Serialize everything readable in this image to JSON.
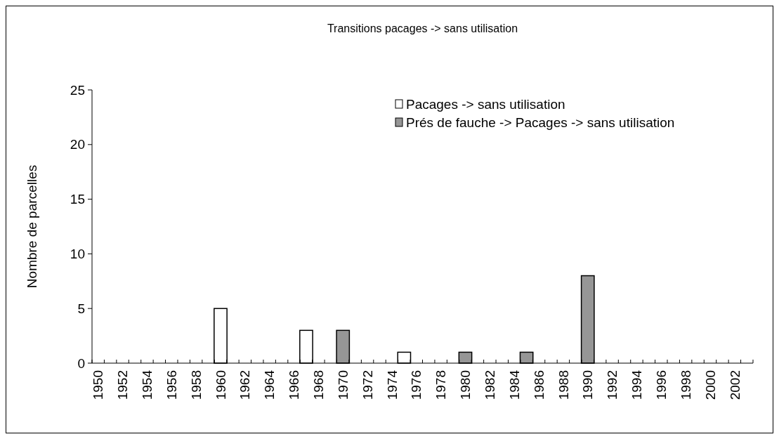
{
  "chart_data": {
    "type": "bar",
    "title": "Transitions pacages -> sans utilisation",
    "ylabel": "Nombre de parcelles",
    "categories": [
      "1950",
      null,
      "1952",
      null,
      "1954",
      null,
      "1956",
      null,
      "1958",
      null,
      "1960",
      null,
      "1962",
      null,
      "1964",
      null,
      "1966",
      null,
      "1968",
      null,
      "1970",
      null,
      "1972",
      null,
      "1974",
      null,
      "1976",
      null,
      "1978",
      null,
      "1980",
      null,
      "1982",
      null,
      "1984",
      null,
      "1986",
      null,
      "1988",
      null,
      "1990",
      null,
      "1992",
      null,
      "1994",
      null,
      "1996",
      null,
      "1998",
      null,
      "2000",
      null,
      "2002",
      null
    ],
    "series": [
      {
        "name": "Pacages -> sans utilisation",
        "color": "#ffffff",
        "values": [
          0,
          0,
          0,
          0,
          0,
          0,
          0,
          0,
          0,
          0,
          5,
          0,
          0,
          0,
          0,
          0,
          0,
          3,
          0,
          0,
          0,
          0,
          0,
          0,
          0,
          1,
          0,
          0,
          0,
          0,
          0,
          0,
          0,
          0,
          0,
          0,
          0,
          0,
          0,
          0,
          0,
          0,
          0,
          0,
          0,
          0,
          0,
          0,
          0,
          0,
          0,
          0,
          0,
          0
        ]
      },
      {
        "name": "Prés de fauche -> Pacages -> sans utilisation",
        "color": "#969696",
        "values": [
          0,
          0,
          0,
          0,
          0,
          0,
          0,
          0,
          0,
          0,
          0,
          0,
          0,
          0,
          0,
          0,
          0,
          0,
          0,
          0,
          3,
          0,
          0,
          0,
          0,
          0,
          0,
          0,
          0,
          0,
          1,
          0,
          0,
          0,
          0,
          1,
          0,
          0,
          0,
          0,
          8,
          0,
          0,
          0,
          0,
          0,
          0,
          0,
          0,
          0,
          0,
          0,
          0,
          0
        ]
      }
    ],
    "ylim": [
      0,
      25
    ],
    "yticks": [
      0,
      5,
      10,
      15,
      20,
      25
    ],
    "grid": false,
    "legend": "top right"
  }
}
